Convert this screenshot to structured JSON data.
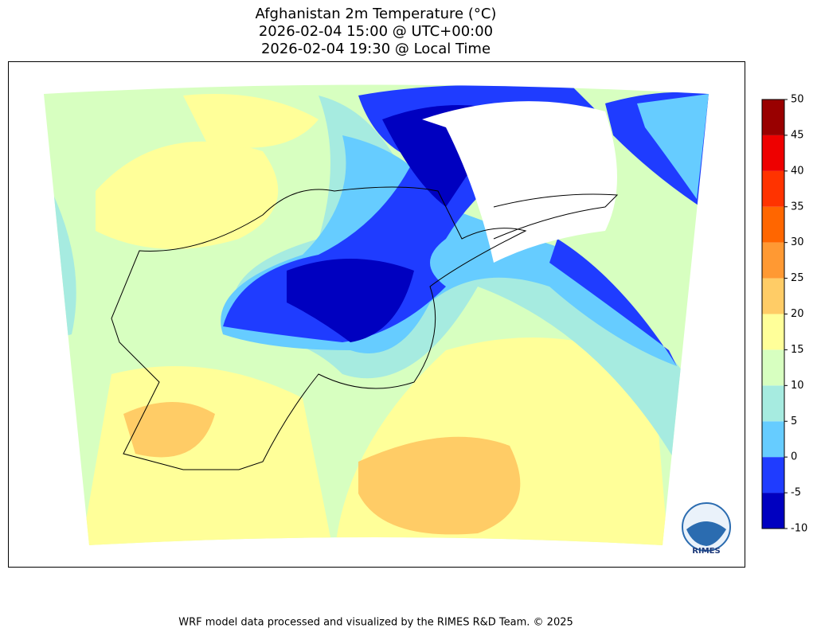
{
  "title": [
    "Afghanistan 2m Temperature (°C)",
    "2026-02-04 15:00 @ UTC+00:00",
    "2026-02-04 19:30 @ Local Time"
  ],
  "colorbar": {
    "ticks": [
      -10,
      -5,
      0,
      5,
      10,
      15,
      20,
      25,
      30,
      35,
      40,
      45,
      50
    ],
    "colors": [
      "#0000c0",
      "#1f3cff",
      "#66ccff",
      "#a6ebe0",
      "#d7ffc0",
      "#ffff99",
      "#ffcc66",
      "#ff9933",
      "#ff6600",
      "#ff3300",
      "#ee0000",
      "#990000"
    ]
  },
  "logo": "RIMES",
  "footer": "WRF model data processed and visualized by the RIMES R&D Team. © 2025"
}
